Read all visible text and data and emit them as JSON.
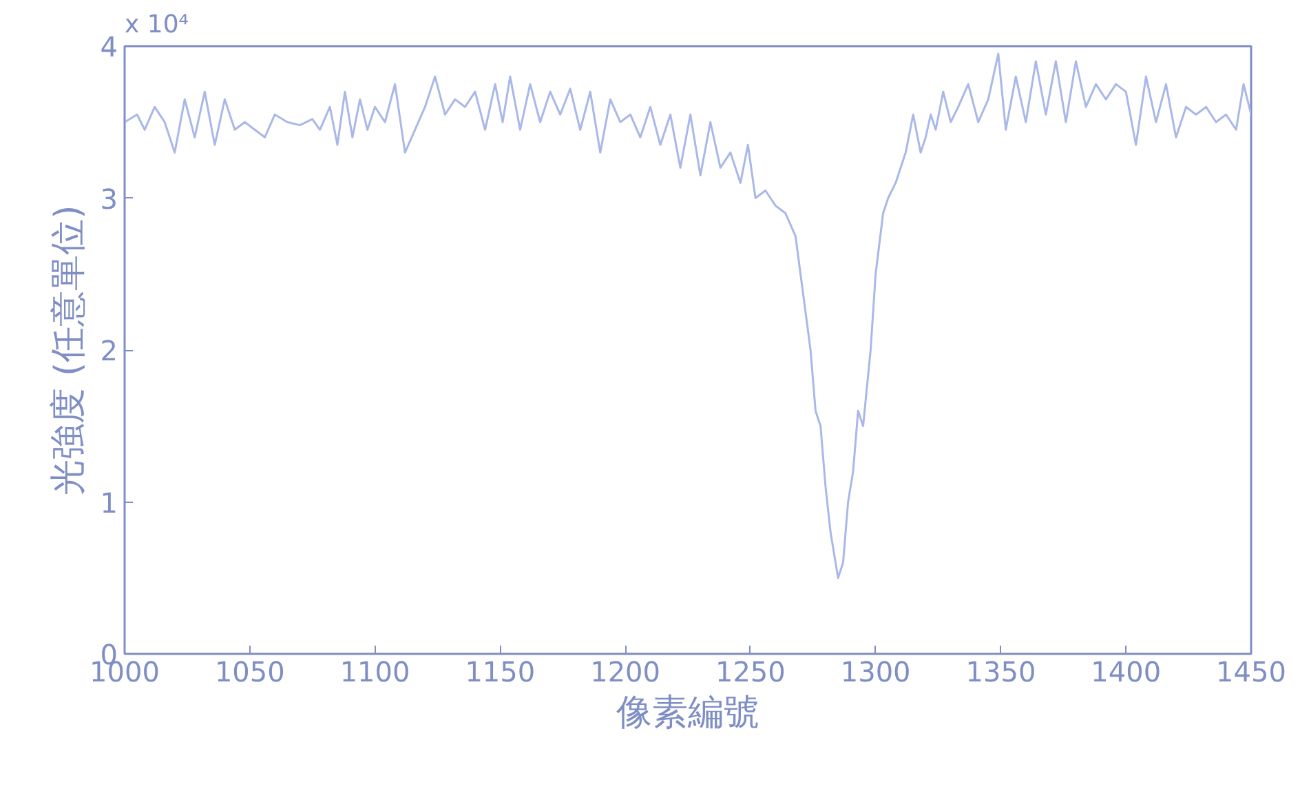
{
  "chart_data": {
    "type": "line",
    "xlabel": "像素編號",
    "ylabel": "光強度 (任意單位)",
    "annotations": [
      "x 10⁴"
    ],
    "x": [
      1000,
      1005,
      1008,
      1012,
      1016,
      1020,
      1024,
      1028,
      1032,
      1036,
      1040,
      1044,
      1048,
      1052,
      1056,
      1060,
      1065,
      1070,
      1075,
      1078,
      1082,
      1085,
      1088,
      1091,
      1094,
      1097,
      1100,
      1104,
      1108,
      1112,
      1116,
      1120,
      1124,
      1128,
      1132,
      1136,
      1140,
      1144,
      1148,
      1151,
      1154,
      1158,
      1162,
      1166,
      1170,
      1174,
      1178,
      1182,
      1186,
      1190,
      1194,
      1198,
      1202,
      1206,
      1210,
      1214,
      1218,
      1222,
      1226,
      1230,
      1234,
      1238,
      1242,
      1246,
      1249,
      1252,
      1256,
      1260,
      1264,
      1268,
      1270,
      1274,
      1276,
      1278,
      1280,
      1282,
      1285,
      1287,
      1289,
      1291,
      1293,
      1295,
      1298,
      1300,
      1303,
      1305,
      1308,
      1312,
      1315,
      1318,
      1320,
      1322,
      1324,
      1327,
      1330,
      1333,
      1337,
      1341,
      1345,
      1349,
      1352,
      1356,
      1360,
      1364,
      1368,
      1372,
      1376,
      1380,
      1384,
      1388,
      1392,
      1396,
      1400,
      1404,
      1408,
      1412,
      1416,
      1420,
      1424,
      1428,
      1432,
      1436,
      1440,
      1444,
      1447,
      1450
    ],
    "series": [
      {
        "color": "#a9b8e8",
        "values": [
          3.5,
          3.55,
          3.45,
          3.6,
          3.5,
          3.3,
          3.65,
          3.4,
          3.7,
          3.35,
          3.65,
          3.45,
          3.5,
          3.45,
          3.4,
          3.55,
          3.5,
          3.48,
          3.52,
          3.45,
          3.6,
          3.35,
          3.7,
          3.4,
          3.65,
          3.45,
          3.6,
          3.5,
          3.75,
          3.3,
          3.45,
          3.6,
          3.8,
          3.55,
          3.65,
          3.6,
          3.7,
          3.45,
          3.75,
          3.5,
          3.8,
          3.45,
          3.75,
          3.5,
          3.7,
          3.55,
          3.72,
          3.45,
          3.7,
          3.3,
          3.65,
          3.5,
          3.55,
          3.4,
          3.6,
          3.35,
          3.55,
          3.2,
          3.55,
          3.15,
          3.5,
          3.2,
          3.3,
          3.1,
          3.35,
          3.0,
          3.05,
          2.95,
          2.9,
          2.75,
          2.5,
          2.0,
          1.6,
          1.5,
          1.1,
          0.8,
          0.5,
          0.6,
          1.0,
          1.2,
          1.6,
          1.5,
          2.0,
          2.5,
          2.9,
          3.0,
          3.1,
          3.3,
          3.55,
          3.3,
          3.4,
          3.55,
          3.45,
          3.7,
          3.5,
          3.6,
          3.75,
          3.5,
          3.65,
          3.95,
          3.45,
          3.8,
          3.5,
          3.9,
          3.55,
          3.9,
          3.5,
          3.9,
          3.6,
          3.75,
          3.65,
          3.75,
          3.7,
          3.35,
          3.8,
          3.5,
          3.75,
          3.4,
          3.6,
          3.55,
          3.6,
          3.5,
          3.55,
          3.45,
          3.75,
          3.55
        ]
      }
    ],
    "xlim": [
      1000,
      1450
    ],
    "ylim": [
      0,
      4
    ],
    "xticks": [
      1000,
      1050,
      1100,
      1150,
      1200,
      1250,
      1300,
      1350,
      1400,
      1450
    ],
    "yticks": [
      0,
      1,
      2,
      3,
      4
    ],
    "grid": false,
    "marker": "none",
    "line_style": "solid"
  }
}
